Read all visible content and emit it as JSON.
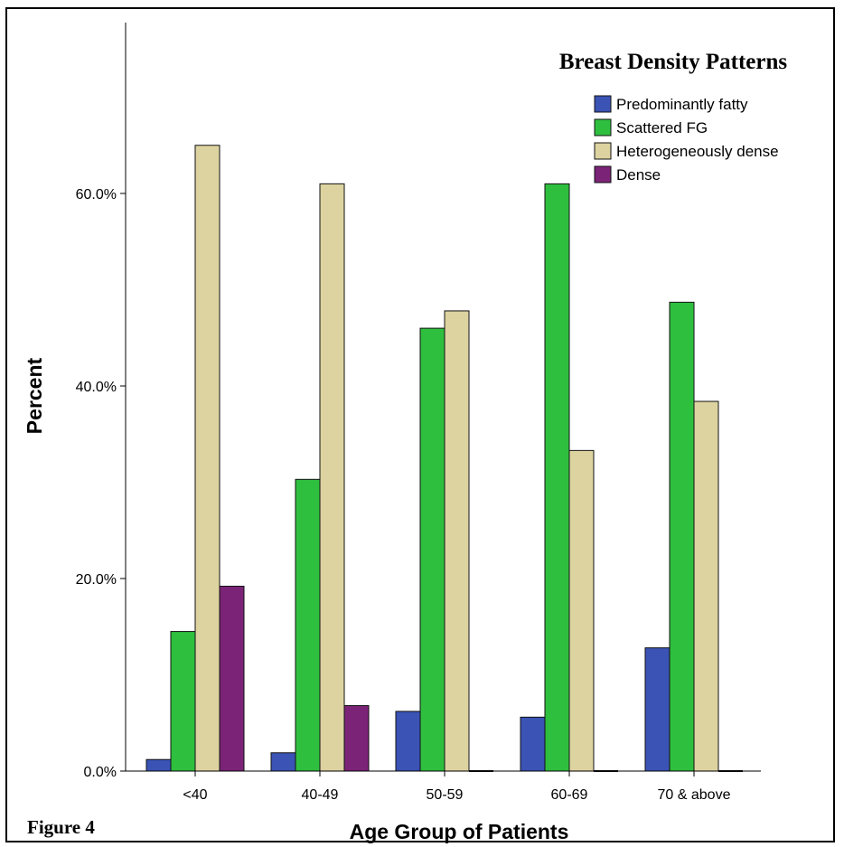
{
  "figure_label": "Figure 4",
  "colors": {
    "Predominantly fatty": "#3a53b5",
    "Scattered FG": "#2fbf3f",
    "Heterogeneously dense": "#ddd3a1",
    "Dense": "#7b2477"
  },
  "chart_data": {
    "type": "bar",
    "title": "Breast Density Patterns",
    "xlabel": "Age Group of Patients",
    "ylabel": "Percent",
    "categories": [
      "<40",
      "40-49",
      "50-59",
      "60-69",
      "70 & above"
    ],
    "ylim": [
      0,
      72
    ],
    "yticks": [
      0,
      20,
      40,
      60
    ],
    "ytick_labels": [
      "0.0%",
      "20.0%",
      "40.0%",
      "60.0%"
    ],
    "grid": false,
    "legend_position": "top-right",
    "series": [
      {
        "name": "Predominantly fatty",
        "values": [
          1.2,
          1.9,
          6.2,
          5.6,
          12.8
        ]
      },
      {
        "name": "Scattered FG",
        "values": [
          14.5,
          30.3,
          46.0,
          61.0,
          48.7
        ]
      },
      {
        "name": "Heterogeneously dense",
        "values": [
          65.0,
          61.0,
          47.8,
          33.3,
          38.4
        ]
      },
      {
        "name": "Dense",
        "values": [
          19.2,
          6.8,
          0,
          0,
          0
        ]
      }
    ]
  }
}
